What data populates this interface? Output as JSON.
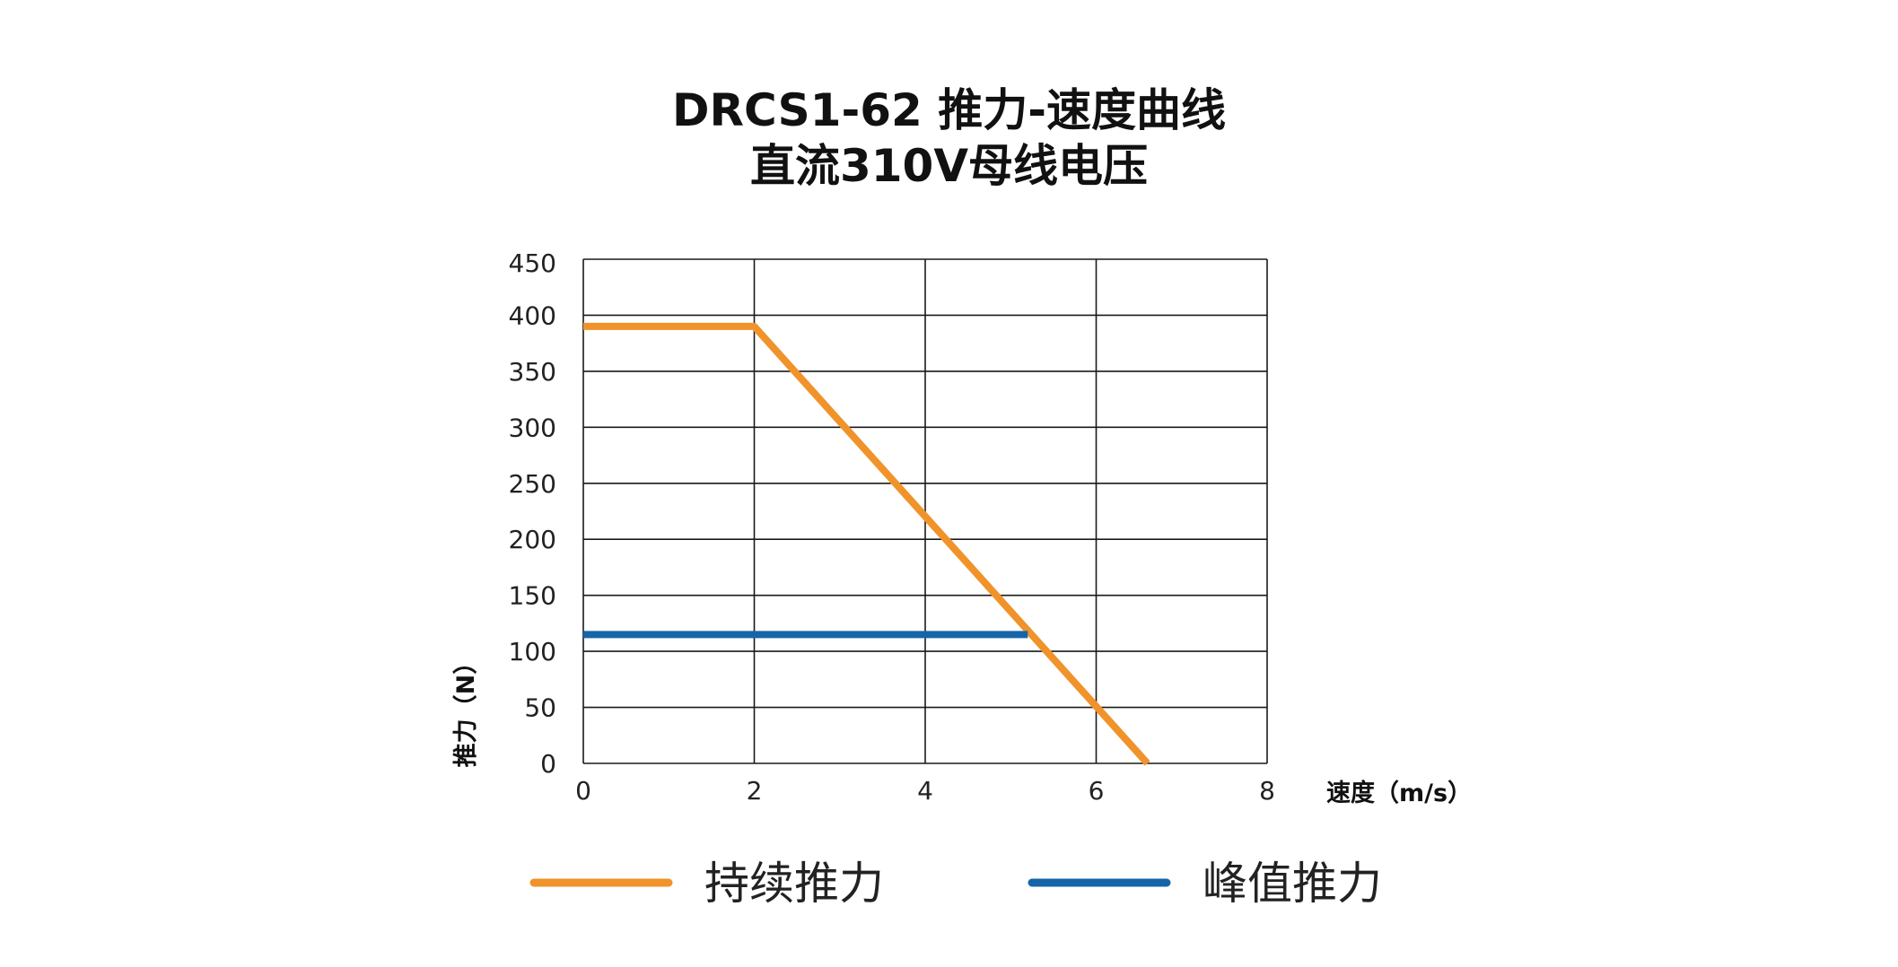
{
  "chart_data": {
    "type": "line",
    "title": "DRCS1-62 推力-速度曲线",
    "subtitle": "直流310V母线电压",
    "xlabel": "速度（m/s）",
    "ylabel": "推力（N）",
    "xlim": [
      0,
      8
    ],
    "ylim": [
      0,
      450
    ],
    "xticks": [
      "0",
      "2",
      "4",
      "6",
      "8"
    ],
    "yticks": [
      "0",
      "50",
      "100",
      "150",
      "200",
      "250",
      "300",
      "350",
      "400",
      "450"
    ],
    "grid": true,
    "legend_position": "bottom",
    "series": [
      {
        "name": "持续推力",
        "color": "#F0932B",
        "points": [
          [
            0,
            390
          ],
          [
            2,
            390
          ],
          [
            6.6,
            0
          ]
        ]
      },
      {
        "name": "峰值推力",
        "color": "#1565A8",
        "points": [
          [
            0,
            115
          ],
          [
            5.2,
            115
          ]
        ]
      }
    ]
  }
}
